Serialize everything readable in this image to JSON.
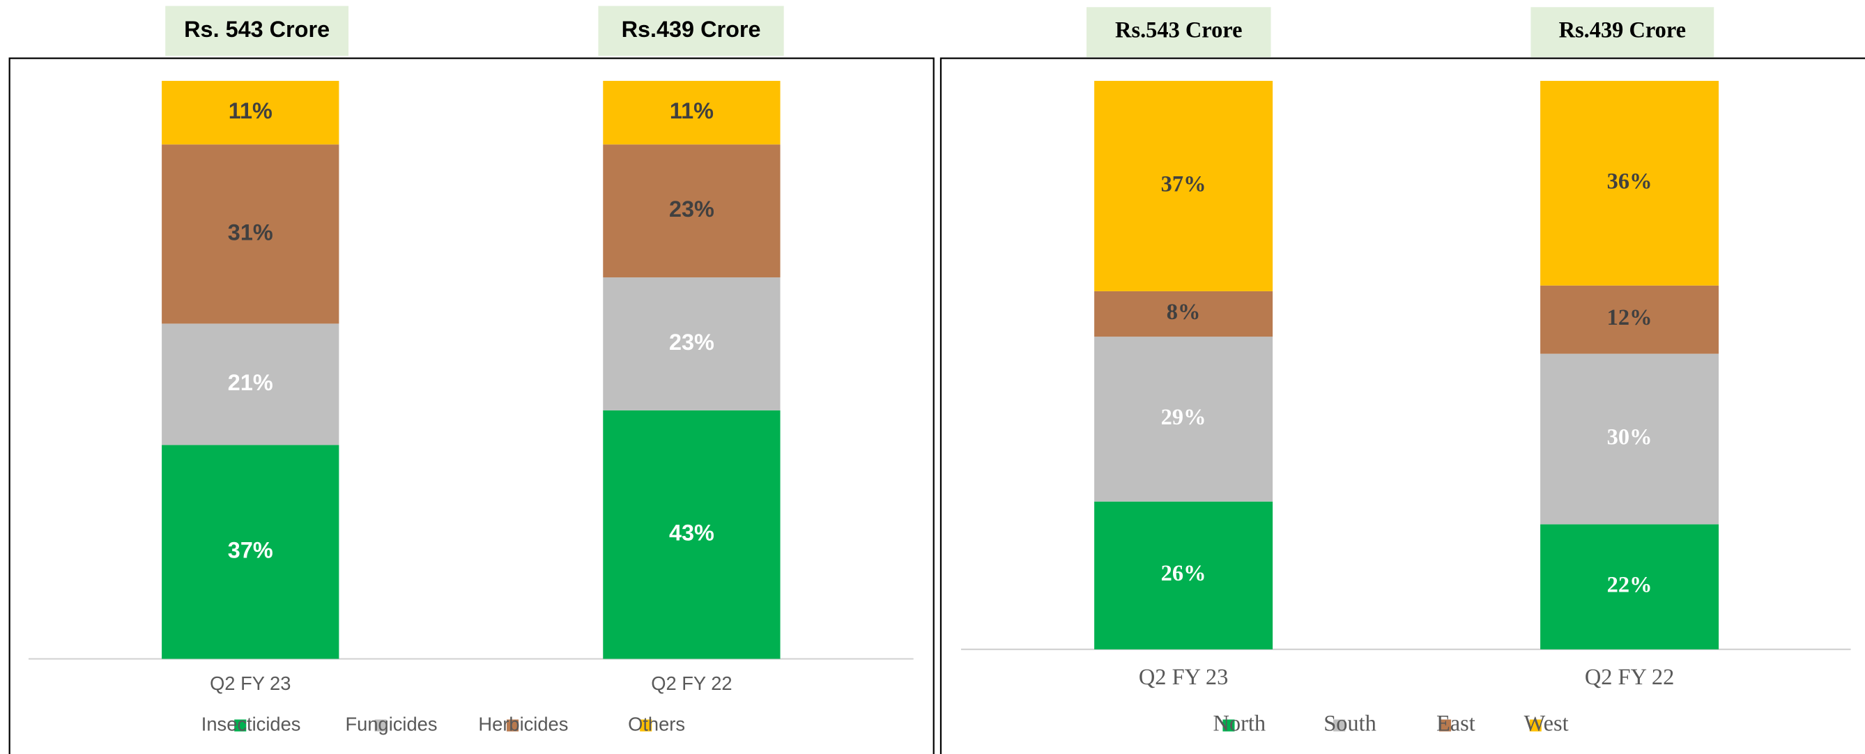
{
  "chart_data": [
    {
      "type": "bar",
      "stacked": true,
      "header_labels": [
        "Rs. 543 Crore",
        "Rs.439 Crore"
      ],
      "categories": [
        "Q2 FY 23",
        "Q2 FY 22"
      ],
      "ylim": [
        0,
        100
      ],
      "legend": "bottom",
      "series": [
        {
          "name": "Insecticides",
          "color": "#00b050",
          "label_color": "#ffffff",
          "values": [
            37,
            43
          ],
          "value_labels": [
            "37%",
            "43%"
          ]
        },
        {
          "name": "Fungicides",
          "color": "#bfbfbf",
          "label_color": "#ffffff",
          "values": [
            21,
            23
          ],
          "value_labels": [
            "21%",
            "23%"
          ]
        },
        {
          "name": "Herbicides",
          "color": "#b87a4f",
          "label_color": "#404040",
          "values": [
            31,
            23
          ],
          "value_labels": [
            "31%",
            "23%"
          ]
        },
        {
          "name": "Others",
          "color": "#ffc000",
          "label_color": "#404040",
          "values": [
            11,
            11
          ],
          "value_labels": [
            "11%",
            "11%"
          ]
        }
      ]
    },
    {
      "type": "bar",
      "stacked": true,
      "header_labels": [
        "Rs.543 Crore",
        "Rs.439 Crore"
      ],
      "categories": [
        "Q2 FY 23",
        "Q2 FY 22"
      ],
      "ylim": [
        0,
        100
      ],
      "legend": "bottom",
      "series": [
        {
          "name": "North",
          "color": "#00b050",
          "label_color": "#ffffff",
          "values": [
            26,
            22
          ],
          "value_labels": [
            "26%",
            "22%"
          ]
        },
        {
          "name": "South",
          "color": "#bfbfbf",
          "label_color": "#ffffff",
          "values": [
            29,
            30
          ],
          "value_labels": [
            "29%",
            "30%"
          ]
        },
        {
          "name": "East",
          "color": "#b87a4f",
          "label_color": "#404040",
          "values": [
            8,
            12
          ],
          "value_labels": [
            "8%",
            "12%"
          ]
        },
        {
          "name": "West",
          "color": "#ffc000",
          "label_color": "#404040",
          "values": [
            37,
            36
          ],
          "value_labels": [
            "37%",
            "36%"
          ]
        }
      ]
    }
  ]
}
